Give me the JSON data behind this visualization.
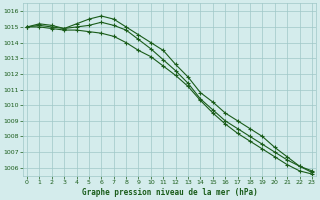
{
  "title": "Graphe pression niveau de la mer (hPa)",
  "background_color": "#d4ecec",
  "grid_color": "#9fc8c8",
  "line_color": "#1a5c1a",
  "x_hours": [
    0,
    1,
    2,
    3,
    4,
    5,
    6,
    7,
    8,
    9,
    10,
    11,
    12,
    13,
    14,
    15,
    16,
    17,
    18,
    19,
    20,
    21,
    22,
    23
  ],
  "line1": [
    1015.0,
    1015.2,
    1015.1,
    1014.9,
    1015.2,
    1015.5,
    1015.7,
    1015.5,
    1015.0,
    1014.5,
    1014.0,
    1013.5,
    1012.6,
    1011.8,
    1010.8,
    1010.2,
    1009.5,
    1009.0,
    1008.5,
    1008.0,
    1007.3,
    1006.7,
    1006.1,
    1005.7
  ],
  "line2": [
    1015.0,
    1015.1,
    1015.0,
    1014.9,
    1015.0,
    1015.1,
    1015.3,
    1015.1,
    1014.8,
    1014.2,
    1013.6,
    1012.9,
    1012.2,
    1011.4,
    1010.4,
    1009.7,
    1009.0,
    1008.5,
    1008.0,
    1007.5,
    1007.0,
    1006.5,
    1006.1,
    1005.8
  ],
  "line3": [
    1015.0,
    1015.0,
    1014.9,
    1014.8,
    1014.8,
    1014.7,
    1014.6,
    1014.4,
    1014.0,
    1013.5,
    1013.1,
    1012.5,
    1011.9,
    1011.2,
    1010.3,
    1009.5,
    1008.8,
    1008.2,
    1007.7,
    1007.2,
    1006.7,
    1006.2,
    1005.8,
    1005.6
  ],
  "ylim_min": 1005.5,
  "ylim_max": 1016.5,
  "ytick_labels": [
    "1006",
    "1007",
    "1008",
    "1009",
    "1010",
    "1011",
    "1012",
    "1013",
    "1014",
    "1015",
    "1016"
  ],
  "ytick_vals": [
    1006,
    1007,
    1008,
    1009,
    1010,
    1011,
    1012,
    1013,
    1014,
    1015,
    1016
  ]
}
